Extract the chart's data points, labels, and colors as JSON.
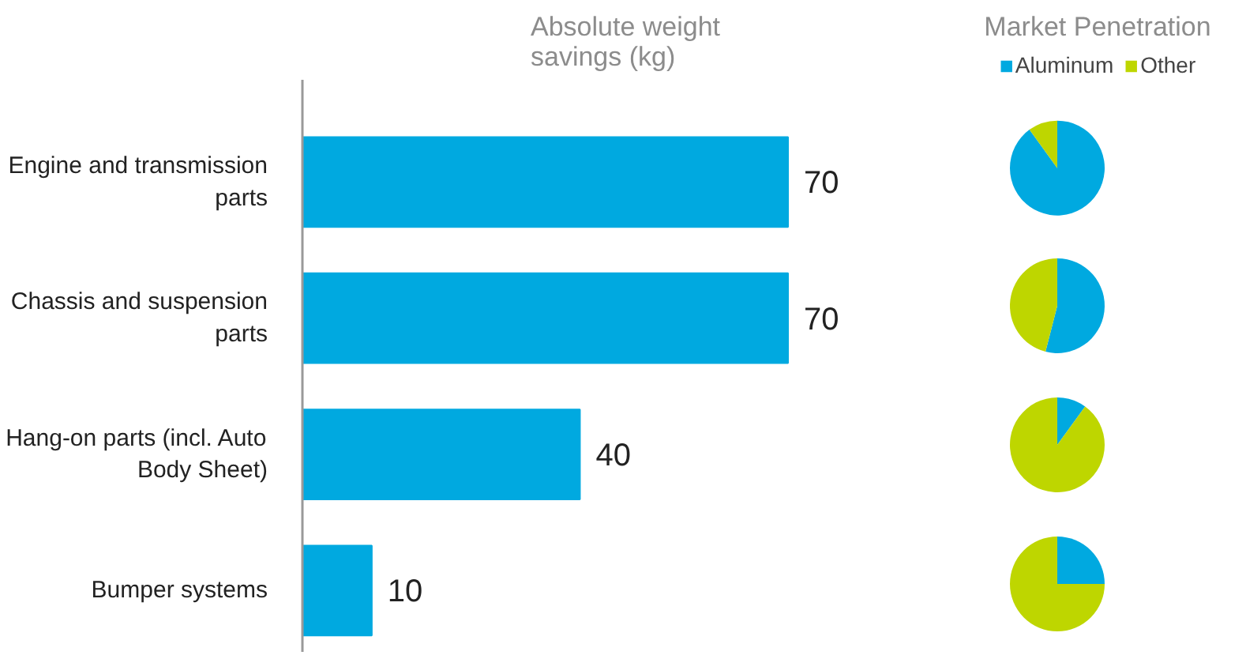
{
  "chart_data": [
    {
      "type": "bar",
      "orientation": "horizontal",
      "title": "Absolute weight savings (kg)",
      "categories": [
        "Engine and transmission parts",
        "Chassis and suspension parts",
        "Hang-on parts (incl. Auto Body Sheet)",
        "Bumper systems"
      ],
      "values": [
        70,
        70,
        40,
        10
      ],
      "color": "#00a9e0",
      "data_labels": true,
      "grid": false
    },
    {
      "type": "pie",
      "title": "Market Penetration",
      "categories": [
        "Aluminum",
        "Other"
      ],
      "values": [
        90,
        10
      ],
      "colors": [
        "#00a9e0",
        "#bed600"
      ],
      "legend": "top"
    },
    {
      "type": "pie",
      "categories": [
        null,
        null
      ],
      "values": [
        54,
        46
      ],
      "colors": [
        "#00a9e0",
        "#bed600"
      ]
    },
    {
      "type": "pie",
      "categories": [
        null,
        null
      ],
      "values": [
        10,
        90
      ],
      "colors": [
        "#00a9e0",
        "#bed600"
      ]
    },
    {
      "type": "pie",
      "categories": [
        null,
        null
      ],
      "values": [
        25,
        75
      ],
      "colors": [
        "#00a9e0",
        "#bed600"
      ]
    }
  ]
}
